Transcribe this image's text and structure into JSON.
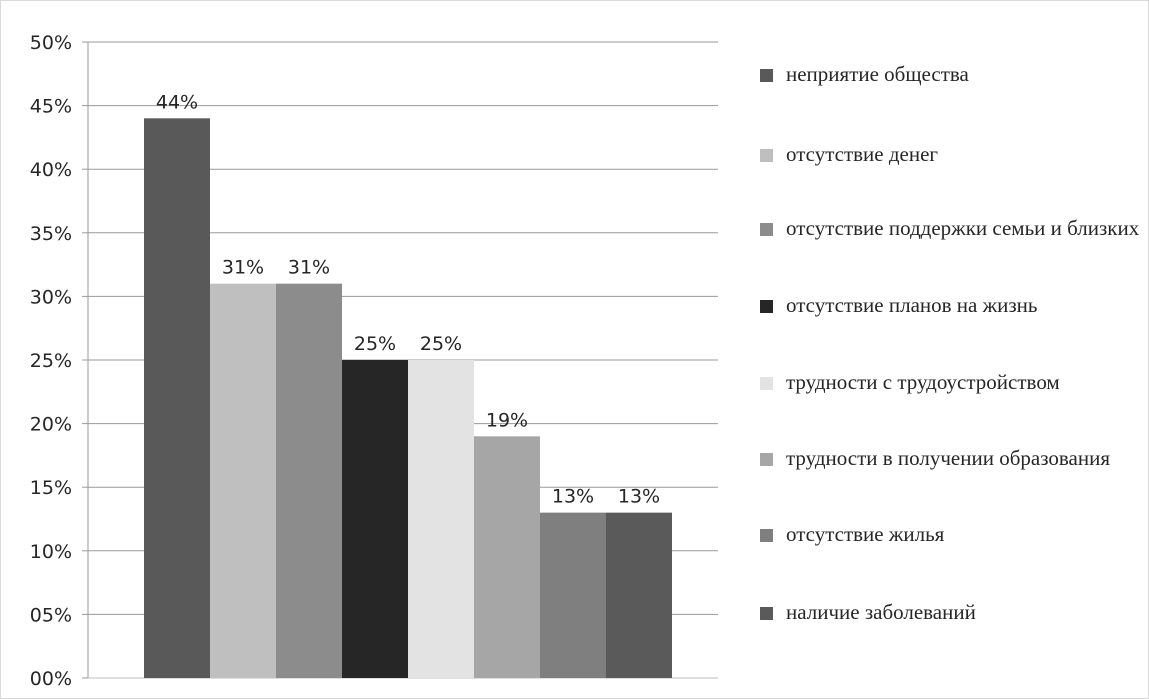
{
  "chart_data": {
    "type": "bar",
    "categories": [
      "неприятие общества",
      "отсутствие денег",
      "отсутствие поддержки семьи и близких",
      "отсутствие планов на жизнь",
      "трудности с трудоустройством",
      "трудности в получении образования",
      "отсутствие жилья",
      "наличие заболеваний"
    ],
    "values": [
      44,
      31,
      31,
      25,
      25,
      19,
      13,
      13
    ],
    "data_labels": [
      "44%",
      "31%",
      "31%",
      "25%",
      "25%",
      "19%",
      "13%",
      "13%"
    ],
    "colors": [
      "#595959",
      "#bfbfbf",
      "#8c8c8c",
      "#262626",
      "#e3e3e3",
      "#a6a6a6",
      "#7f7f7f",
      "#5a5a5a"
    ],
    "ylim": [
      0,
      50
    ],
    "y_ticks": [
      "00%",
      "05%",
      "10%",
      "15%",
      "20%",
      "25%",
      "30%",
      "35%",
      "40%",
      "45%",
      "50%"
    ],
    "grid": true,
    "legend_position": "right",
    "title": "",
    "xlabel": "",
    "ylabel": ""
  }
}
